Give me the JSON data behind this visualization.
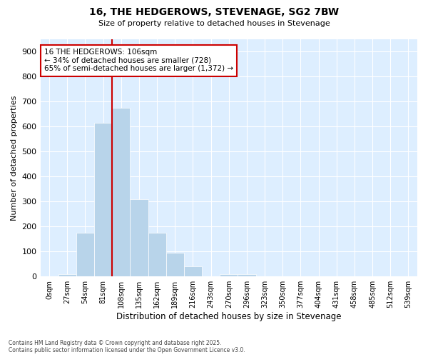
{
  "title": "16, THE HEDGEROWS, STEVENAGE, SG2 7BW",
  "subtitle": "Size of property relative to detached houses in Stevenage",
  "xlabel": "Distribution of detached houses by size in Stevenage",
  "ylabel": "Number of detached properties",
  "annotation_line1": "16 THE HEDGEROWS: 106sqm",
  "annotation_line2": "← 34% of detached houses are smaller (728)",
  "annotation_line3": "65% of semi-detached houses are larger (1,372) →",
  "bar_color": "#b8d4ea",
  "marker_color": "#cc0000",
  "background_color": "#ddeeff",
  "categories": [
    "0sqm",
    "27sqm",
    "54sqm",
    "81sqm",
    "108sqm",
    "135sqm",
    "162sqm",
    "189sqm",
    "216sqm",
    "243sqm",
    "270sqm",
    "296sqm",
    "323sqm",
    "350sqm",
    "377sqm",
    "404sqm",
    "431sqm",
    "458sqm",
    "485sqm",
    "512sqm",
    "539sqm"
  ],
  "values": [
    0,
    10,
    175,
    615,
    675,
    310,
    175,
    95,
    40,
    0,
    10,
    10,
    0,
    0,
    0,
    0,
    0,
    0,
    0,
    0,
    0
  ],
  "ylim": [
    0,
    950
  ],
  "yticks": [
    0,
    100,
    200,
    300,
    400,
    500,
    600,
    700,
    800,
    900
  ],
  "property_line_x": 4,
  "footer_line1": "Contains HM Land Registry data © Crown copyright and database right 2025.",
  "footer_line2": "Contains public sector information licensed under the Open Government Licence v3.0."
}
